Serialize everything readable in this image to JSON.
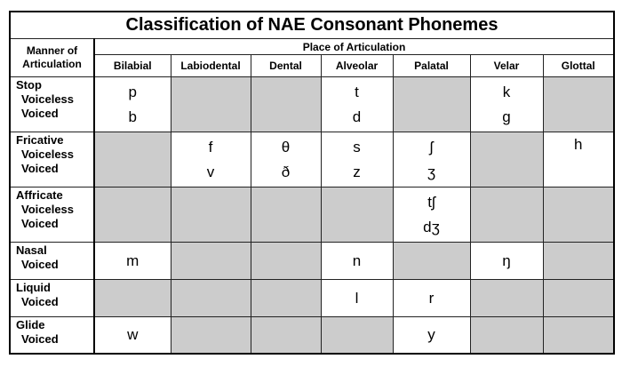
{
  "title": "Classification of NAE Consonant Phonemes",
  "manner_header": [
    "Manner of",
    "Articulation"
  ],
  "place_header": "Place of Articulation",
  "columns": [
    "Bilabial",
    "Labiodental",
    "Dental",
    "Alveolar",
    "Palatal",
    "Velar",
    "Glottal"
  ],
  "colors": {
    "empty_cell": "#cccccc",
    "filled_cell": "#ffffff",
    "border": "#000000"
  },
  "rows": [
    {
      "manner": "Stop",
      "sub": [
        "Voiceless",
        "Voiced"
      ],
      "cells": [
        [
          "p",
          "b"
        ],
        null,
        null,
        [
          "t",
          "d"
        ],
        null,
        [
          "k",
          "g"
        ],
        null
      ]
    },
    {
      "manner": "Fricative",
      "sub": [
        "Voiceless",
        "Voiced"
      ],
      "cells": [
        null,
        [
          "f",
          "v"
        ],
        [
          "θ",
          "ð"
        ],
        [
          "s",
          "z"
        ],
        [
          "ʃ",
          "ʒ"
        ],
        null,
        [
          "h"
        ]
      ]
    },
    {
      "manner": "Affricate",
      "sub": [
        "Voiceless",
        "Voiced"
      ],
      "cells": [
        null,
        null,
        null,
        null,
        [
          "tʃ",
          "dʒ"
        ],
        null,
        null
      ]
    },
    {
      "manner": "Nasal",
      "sub": [
        "Voiced"
      ],
      "cells": [
        [
          "m"
        ],
        null,
        null,
        [
          "n"
        ],
        null,
        [
          "ŋ"
        ],
        null
      ]
    },
    {
      "manner": "Liquid",
      "sub": [
        "Voiced"
      ],
      "cells": [
        null,
        null,
        null,
        [
          "l"
        ],
        [
          "r"
        ],
        null,
        null
      ]
    },
    {
      "manner": "Glide",
      "sub": [
        "Voiced"
      ],
      "cells": [
        [
          "w"
        ],
        null,
        null,
        null,
        [
          "y"
        ],
        null,
        null
      ]
    }
  ]
}
